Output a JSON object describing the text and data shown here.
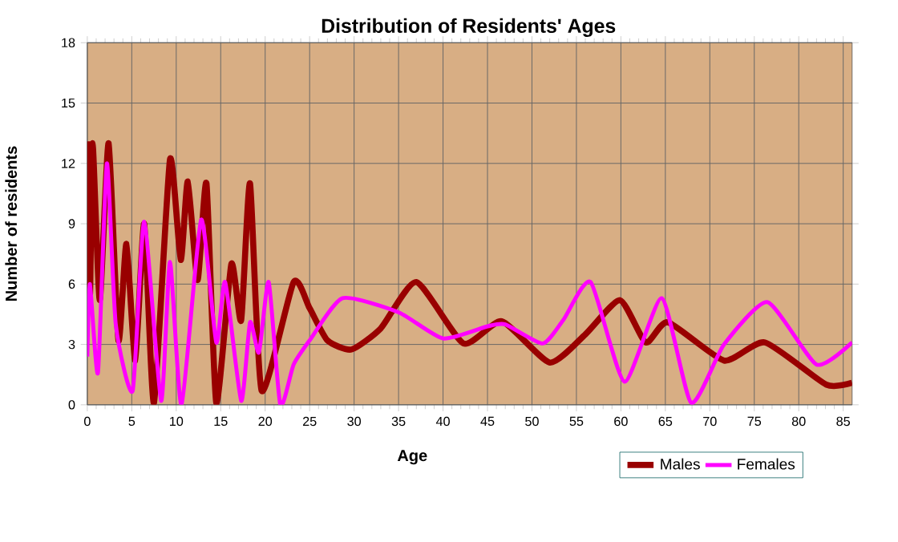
{
  "chart_data": {
    "type": "line",
    "title": "Distribution of Residents' Ages",
    "xlabel": "Age",
    "ylabel": "Number of residents",
    "xlim": [
      0,
      86
    ],
    "xticks": [
      0,
      5,
      10,
      15,
      20,
      25,
      30,
      35,
      40,
      45,
      50,
      55,
      60,
      65,
      70,
      75,
      80,
      85
    ],
    "ylim": [
      0,
      18
    ],
    "yticks": [
      0,
      3,
      6,
      9,
      12,
      15,
      18
    ],
    "grid": true,
    "legend": "bottom right",
    "line_style": "solid",
    "series": [
      {
        "name": "Males",
        "color": "#990000",
        "x": [
          0,
          0.3,
          0.6,
          1.4,
          2.4,
          3.5,
          4.4,
          5.4,
          6.4,
          7.5,
          9.3,
          10.5,
          11.3,
          12.4,
          13.4,
          14.5,
          16.2,
          17.3,
          18.3,
          19.6,
          23.2,
          25,
          27,
          29.7,
          33,
          37,
          42.3,
          46.6,
          52,
          56,
          59.9,
          62.8,
          65.3,
          71.6,
          76.2,
          83.1,
          86
        ],
        "values": [
          13.1,
          5.5,
          13,
          5.2,
          13,
          3.2,
          8,
          2.2,
          9,
          0.1,
          12.2,
          7.2,
          11.1,
          6.2,
          11,
          0.1,
          7,
          4.2,
          11,
          0.7,
          6.1,
          4.8,
          3.2,
          2.75,
          3.8,
          6.1,
          3.05,
          4.15,
          2.1,
          3.5,
          5.2,
          3.1,
          4.1,
          2.2,
          3.1,
          1.0,
          1.1
        ]
      },
      {
        "name": "Females",
        "color": "#ff00ff",
        "x": [
          0,
          0.3,
          1.2,
          2.2,
          3.2,
          5.1,
          6.4,
          8.3,
          9.3,
          10.6,
          12.8,
          14.5,
          15.5,
          17.3,
          18.3,
          19.3,
          20.4,
          21.7,
          23.2,
          25,
          28.7,
          35,
          40,
          45,
          47,
          51.2,
          53.5,
          56.6,
          60.4,
          64.6,
          67.9,
          71.6,
          76.5,
          82,
          86
        ],
        "values": [
          2.4,
          6,
          1.6,
          12,
          4,
          0.7,
          9.1,
          0.2,
          7.1,
          0,
          9.2,
          3.1,
          6.1,
          0.2,
          4.1,
          2.6,
          6.1,
          0,
          2,
          3.2,
          5.3,
          4.6,
          3.3,
          3.9,
          4.0,
          3.05,
          4.2,
          6.1,
          1.15,
          5.3,
          0.1,
          3.0,
          5.1,
          2.0,
          3.1
        ]
      }
    ]
  }
}
